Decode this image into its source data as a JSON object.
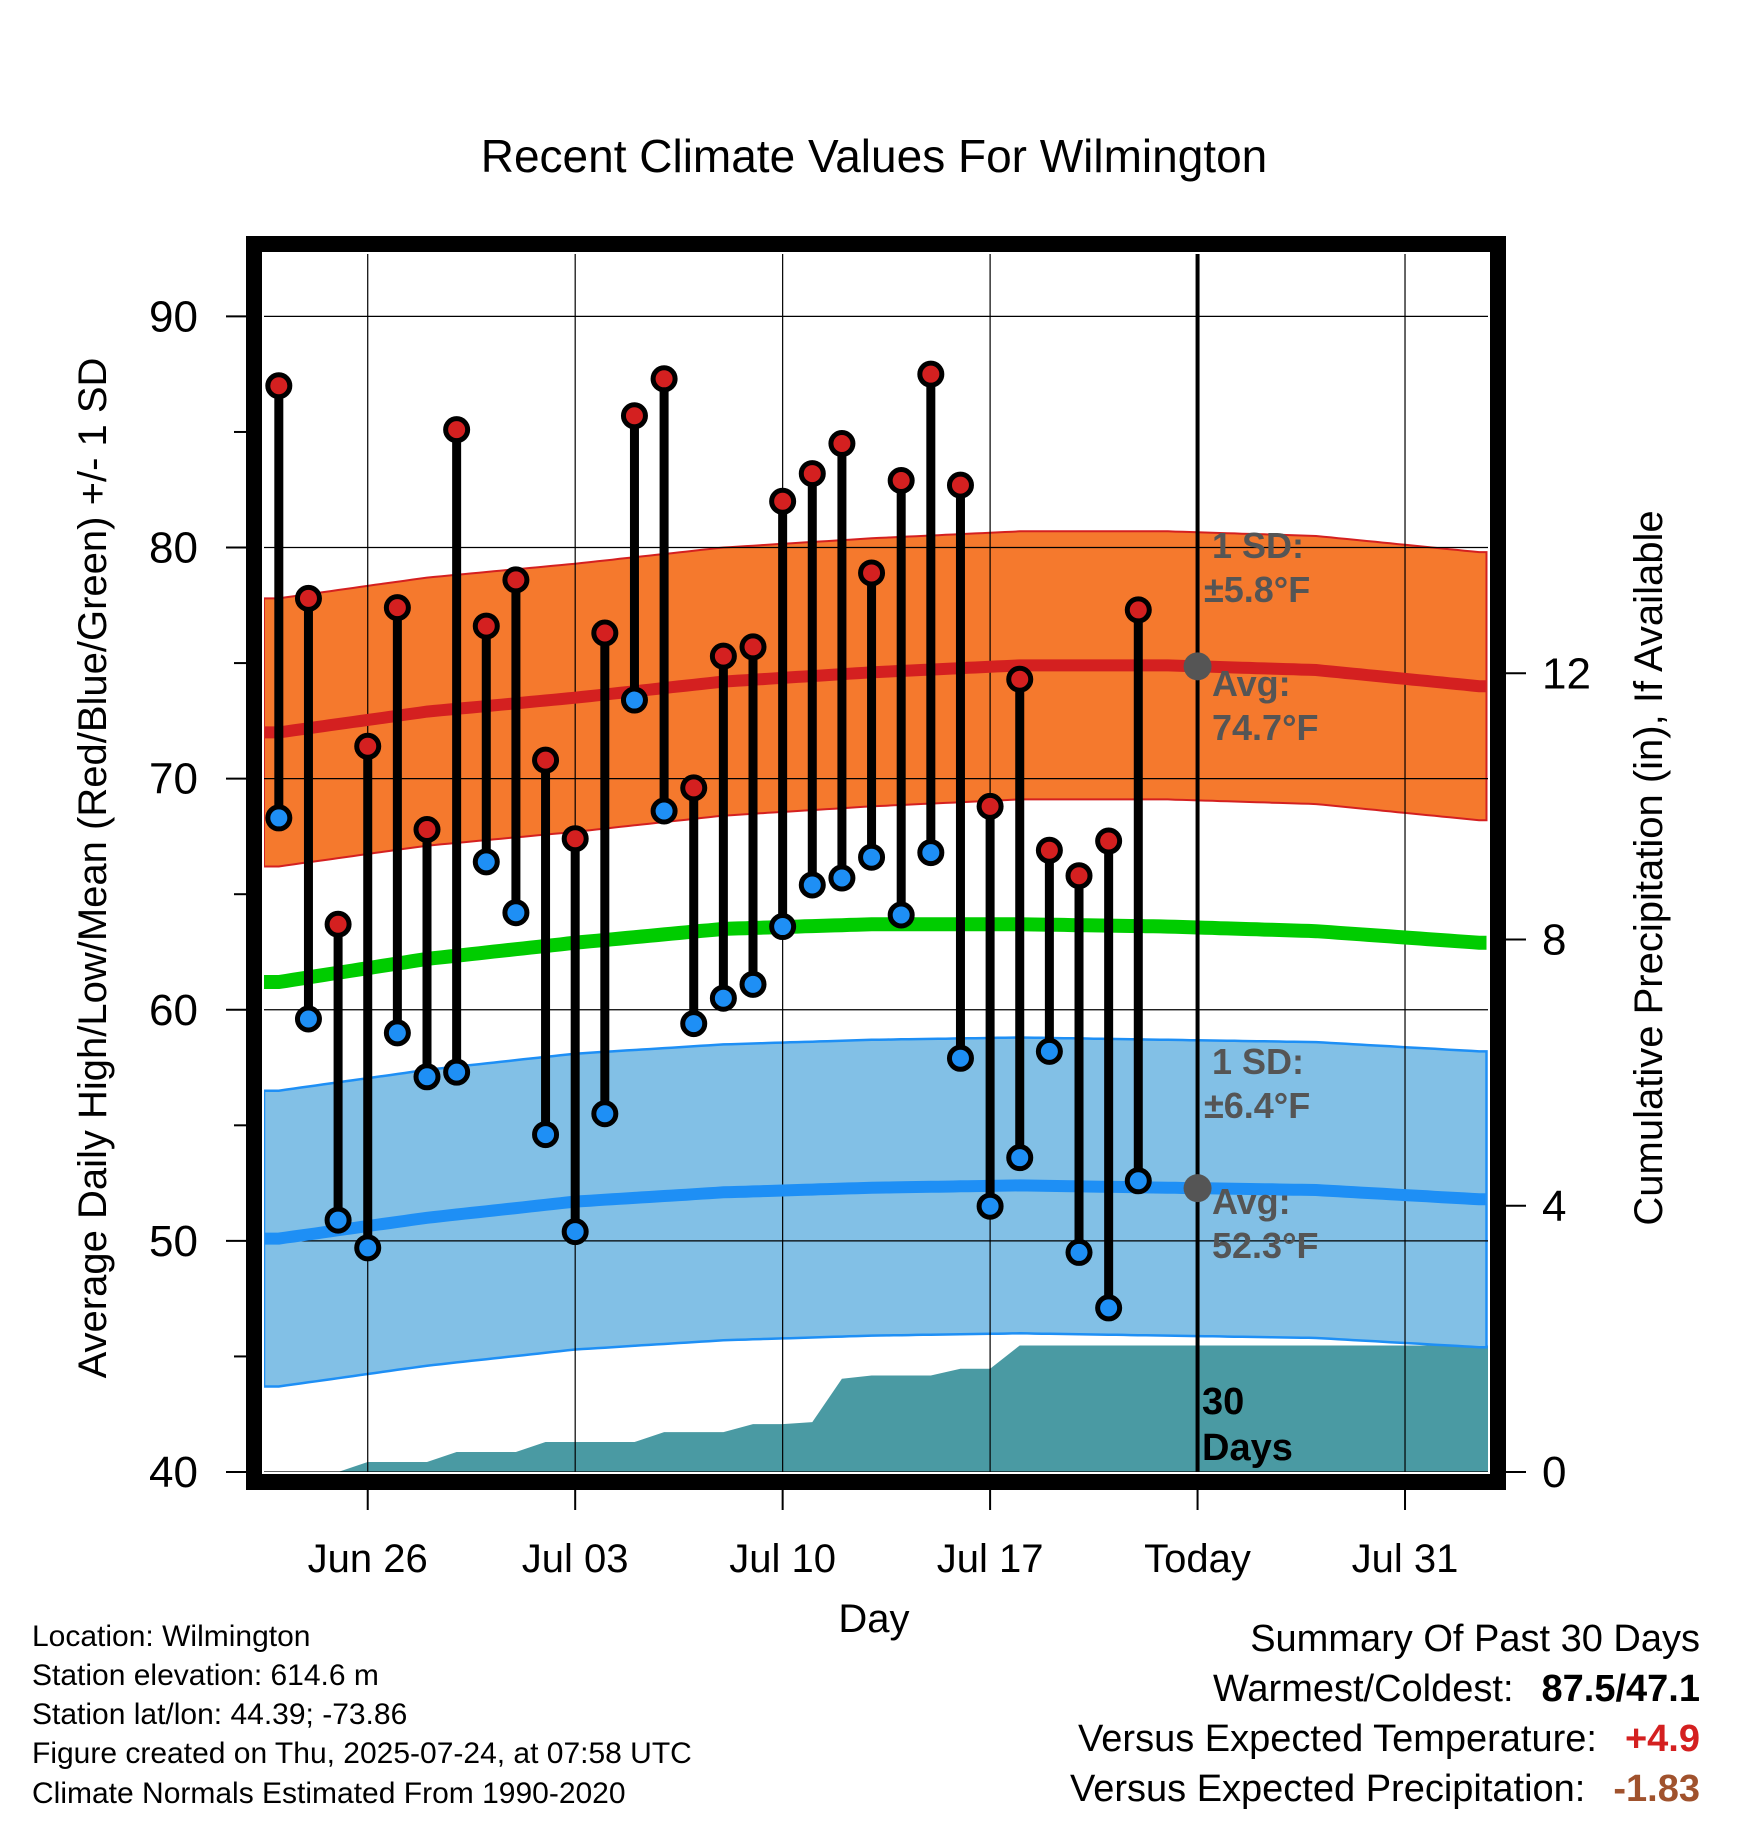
{
  "chart_data": {
    "type": "line",
    "title": "Recent Climate Values For Wilmington",
    "xlabel": "Day",
    "ylabel": "Average Daily High/Low/Mean (Red/Blue/Green) +/- 1 SD",
    "y2label": "Cumulative Precipitation (in), If Available",
    "ylim": [
      40,
      92.7
    ],
    "y2lim": [
      0,
      18.3
    ],
    "xlim": [
      -0.5,
      40.8
    ],
    "yticks": [
      "40",
      "50",
      "60",
      "70",
      "80",
      "90"
    ],
    "y2ticks": [
      "0",
      "4",
      "8",
      "12"
    ],
    "xticks": [
      {
        "day": 3,
        "label": "Jun 26"
      },
      {
        "day": 10,
        "label": "Jul 03"
      },
      {
        "day": 17,
        "label": "Jul 10"
      },
      {
        "day": 24,
        "label": "Jul 17"
      },
      {
        "day": 31,
        "label": "Today"
      },
      {
        "day": 38,
        "label": "Jul 31"
      }
    ],
    "today_day": 31,
    "grid": true,
    "daily_high": [
      87.0,
      77.8,
      63.7,
      71.4,
      77.4,
      67.8,
      85.1,
      76.6,
      78.6,
      70.8,
      67.4,
      76.3,
      85.7,
      87.3,
      69.6,
      75.3,
      75.7,
      82.0,
      83.2,
      84.5,
      78.9,
      82.9,
      87.5,
      82.7,
      68.8,
      74.3,
      66.9,
      65.8,
      67.3,
      77.3
    ],
    "daily_low": [
      68.3,
      59.6,
      50.9,
      49.7,
      59.0,
      57.1,
      57.3,
      66.4,
      64.2,
      54.6,
      50.4,
      55.5,
      73.4,
      68.6,
      59.4,
      60.5,
      61.1,
      63.6,
      65.4,
      65.7,
      66.6,
      64.1,
      66.8,
      57.9,
      51.5,
      53.6,
      58.2,
      49.5,
      47.1,
      52.6
    ],
    "normal_high": [
      72.0,
      72.9,
      73.5,
      74.2,
      74.6,
      74.9,
      74.9,
      74.7,
      74.0
    ],
    "normal_high_sd": 5.8,
    "normal_mean": [
      61.2,
      62.2,
      62.9,
      63.5,
      63.7,
      63.7,
      63.6,
      63.4,
      62.9
    ],
    "normal_low": [
      50.1,
      51.0,
      51.7,
      52.1,
      52.3,
      52.4,
      52.3,
      52.2,
      51.8
    ],
    "normal_low_sd": 6.4,
    "normal_days": [
      0,
      5,
      10,
      15,
      20,
      25,
      30,
      35,
      40.5
    ],
    "precip_cumulative": [
      0,
      0,
      0,
      0.15,
      0.15,
      0.15,
      0.3,
      0.3,
      0.3,
      0.45,
      0.45,
      0.45,
      0.45,
      0.6,
      0.6,
      0.6,
      0.72,
      0.72,
      0.75,
      1.4,
      1.45,
      1.45,
      1.45,
      1.55,
      1.55,
      1.9,
      1.9,
      1.9,
      1.9,
      1.9,
      1.9,
      1.9
    ],
    "labels": {
      "high_sd": "1 SD:",
      "high_sd_value": "±5.8°F",
      "high_avg": "Avg:",
      "high_avg_value": "74.7°F",
      "low_sd": "1 SD:",
      "low_sd_value": "±6.4°F",
      "low_avg": "Avg:",
      "low_avg_value": "52.3°F",
      "period_count": "30",
      "period_unit": "Days"
    }
  },
  "colors": {
    "high_band": "#f5792d",
    "high_line": "#d42020",
    "mean_line": "#00cc00",
    "low_band": "#82c0e6",
    "low_line": "#1e8ff5",
    "precip": "#4a9aa3",
    "high_dot": "#d42020",
    "low_dot": "#1e8ff5",
    "label_gray": "#555555",
    "warm": "#d42020",
    "dry": "#a0522d"
  },
  "info": {
    "location": "Location: Wilmington",
    "elevation": "Station elevation: 614.6 m",
    "latlon": "Station lat/lon: 44.39; -73.86",
    "created": "Figure created on Thu, 2025-07-24, at 07:58 UTC",
    "normals": "Climate Normals Estimated From 1990-2020"
  },
  "summary": {
    "heading": "Summary Of Past 30 Days",
    "warmest_label": "Warmest/Coldest:",
    "warmest_value": "87.5/47.1",
    "temp_label": "Versus Expected Temperature:",
    "temp_value": "+4.9",
    "precip_label": "Versus Expected Precipitation:",
    "precip_value": "-1.83"
  }
}
